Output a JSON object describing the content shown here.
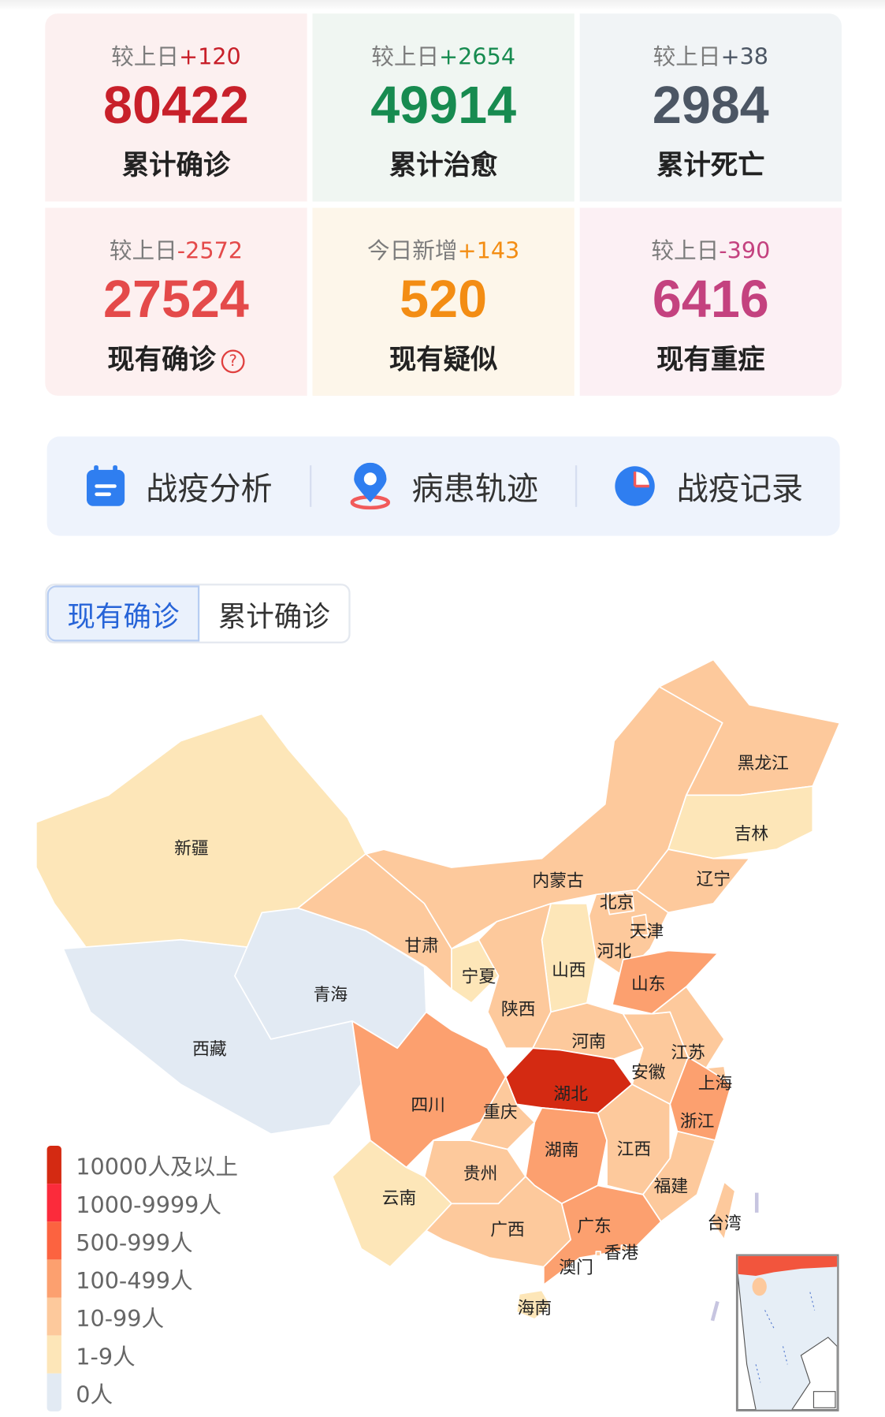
{
  "stats": [
    {
      "delta_prefix": "较上日",
      "delta": "+120",
      "value": "80422",
      "label": "累计确诊",
      "color": "#c8202a",
      "bg": "#fcf0f0",
      "delta_color": "#c8202a"
    },
    {
      "delta_prefix": "较上日",
      "delta": "+2654",
      "value": "49914",
      "label": "累计治愈",
      "color": "#178b50",
      "bg": "#f0f6f2",
      "delta_color": "#178b50"
    },
    {
      "delta_prefix": "较上日",
      "delta": "+38",
      "value": "2984",
      "label": "累计死亡",
      "color": "#4c5664",
      "bg": "#f1f4f6",
      "delta_color": "#4c5664"
    },
    {
      "delta_prefix": "较上日",
      "delta": "-2572",
      "value": "27524",
      "label": "现有确诊",
      "color": "#e44a4a",
      "bg": "#fdf0f0",
      "delta_color": "#e44a4a",
      "help": "?"
    },
    {
      "delta_prefix": "今日新增",
      "delta": "+143",
      "value": "520",
      "label": "现有疑似",
      "color": "#f38d14",
      "bg": "#fdf6ea",
      "delta_color": "#f38d14"
    },
    {
      "delta_prefix": "较上日",
      "delta": "-390",
      "value": "6416",
      "label": "现有重症",
      "color": "#c4427f",
      "bg": "#fcf0f4",
      "delta_color": "#c4427f"
    }
  ],
  "nav": [
    {
      "label": "战疫分析",
      "icon": "calendar-icon"
    },
    {
      "label": "病患轨迹",
      "icon": "location-pin-icon"
    },
    {
      "label": "战疫记录",
      "icon": "clock-pie-icon"
    }
  ],
  "toggle": {
    "active": "现有确诊",
    "inactive": "累计确诊"
  },
  "legend": [
    {
      "label": "10000人及以上",
      "color": "#d42a12"
    },
    {
      "label": "1000-9999人",
      "color": "#fb2b3b"
    },
    {
      "label": "500-999人",
      "color": "#fc6340"
    },
    {
      "label": "100-499人",
      "color": "#fca06f"
    },
    {
      "label": "10-99人",
      "color": "#fdc99c"
    },
    {
      "label": "1-9人",
      "color": "#fde6b8"
    },
    {
      "label": "0人",
      "color": "#e2eaf3"
    }
  ],
  "provinces": [
    {
      "name": "新疆",
      "level": 5
    },
    {
      "name": "西藏",
      "level": 6
    },
    {
      "name": "青海",
      "level": 6
    },
    {
      "name": "甘肃",
      "level": 4
    },
    {
      "name": "内蒙古",
      "level": 4
    },
    {
      "name": "黑龙江",
      "level": 4
    },
    {
      "name": "吉林",
      "level": 5
    },
    {
      "name": "辽宁",
      "level": 4
    },
    {
      "name": "河北",
      "level": 4
    },
    {
      "name": "北京",
      "level": 4
    },
    {
      "name": "天津",
      "level": 4
    },
    {
      "name": "山西",
      "level": 5
    },
    {
      "name": "山东",
      "level": 3
    },
    {
      "name": "宁夏",
      "level": 5
    },
    {
      "name": "陕西",
      "level": 4
    },
    {
      "name": "河南",
      "level": 4
    },
    {
      "name": "湖北",
      "level": 0
    },
    {
      "name": "安徽",
      "level": 4
    },
    {
      "name": "江苏",
      "level": 4
    },
    {
      "name": "上海",
      "level": 4
    },
    {
      "name": "浙江",
      "level": 3
    },
    {
      "name": "四川",
      "level": 3
    },
    {
      "name": "重庆",
      "level": 4
    },
    {
      "name": "贵州",
      "level": 4
    },
    {
      "name": "云南",
      "level": 5
    },
    {
      "name": "湖南",
      "level": 3
    },
    {
      "name": "江西",
      "level": 4
    },
    {
      "name": "福建",
      "level": 4
    },
    {
      "name": "广西",
      "level": 4
    },
    {
      "name": "广东",
      "level": 3
    },
    {
      "name": "香港",
      "level": 4
    },
    {
      "name": "澳门",
      "level": 4
    },
    {
      "name": "海南",
      "level": 5
    },
    {
      "name": "台湾",
      "level": 4
    }
  ]
}
